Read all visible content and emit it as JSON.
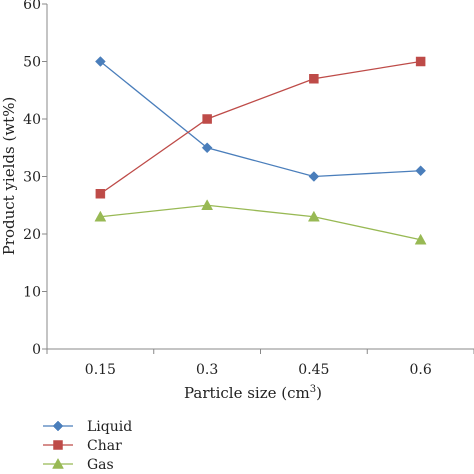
{
  "chart_data": {
    "type": "line",
    "xlabel": "Particle size (cm",
    "xlabel_sup": "3",
    "xlabel_end": ")",
    "ylabel": "Product yields (wt%)",
    "categories": [
      "0.15",
      "0.3",
      "0.45",
      "0.6"
    ],
    "ylim": [
      0,
      60
    ],
    "yticks": [
      "0",
      "10",
      "20",
      "30",
      "40",
      "50",
      "60"
    ],
    "grid": false,
    "legend_position": "bottom-left",
    "series": [
      {
        "name": "Liquid",
        "values": [
          50,
          35,
          30,
          31
        ],
        "color": "#4a7ebb",
        "marker": "diamond"
      },
      {
        "name": "Char",
        "values": [
          27,
          40,
          47,
          50
        ],
        "color": "#be4b48",
        "marker": "square"
      },
      {
        "name": "Gas",
        "values": [
          23,
          25,
          23,
          19
        ],
        "color": "#98b954",
        "marker": "triangle"
      }
    ]
  }
}
